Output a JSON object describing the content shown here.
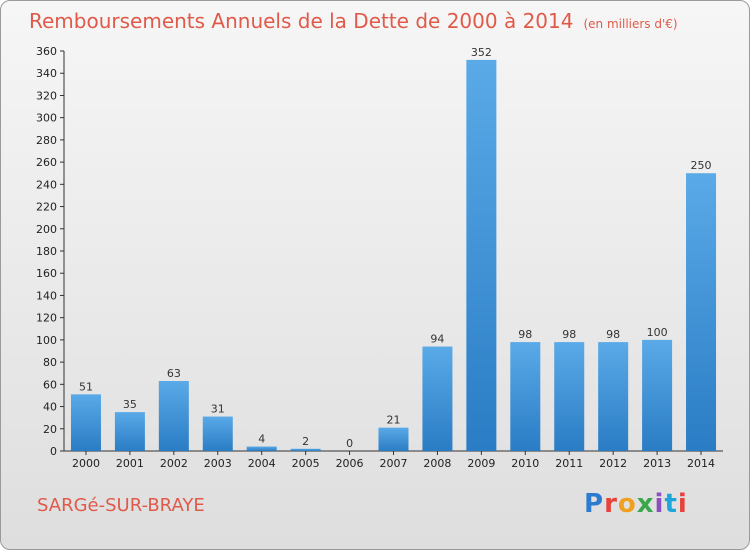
{
  "header": {
    "title": "Remboursements Annuels de la Dette de 2000 à 2014",
    "subtitle": "(en milliers d'€)"
  },
  "footer": {
    "location": "SARGé-SUR-BRAYE",
    "brand": "Proxiti"
  },
  "colors": {
    "bar": "#3b8fd6",
    "title": "#e05a4a",
    "brand_letters": [
      "#2d7bd1",
      "#e8423b",
      "#f0a01e",
      "#3aa84a",
      "#8b4fbf",
      "#1ea5d9",
      "#e8423b"
    ]
  },
  "chart_data": {
    "type": "bar",
    "title": "Remboursements Annuels de la Dette de 2000 à 2014",
    "subtitle": "(en milliers d'€)",
    "xlabel": "",
    "ylabel": "",
    "categories": [
      "2000",
      "2001",
      "2002",
      "2003",
      "2004",
      "2005",
      "2006",
      "2007",
      "2008",
      "2009",
      "2010",
      "2011",
      "2012",
      "2013",
      "2014"
    ],
    "values": [
      51,
      35,
      63,
      31,
      4,
      2,
      0,
      21,
      94,
      352,
      98,
      98,
      98,
      100,
      250
    ],
    "ylim": [
      0,
      360
    ],
    "yticks": [
      0,
      20,
      40,
      60,
      80,
      100,
      120,
      140,
      160,
      180,
      200,
      220,
      240,
      260,
      280,
      300,
      320,
      340,
      360
    ],
    "grid": false,
    "legend": "none"
  }
}
